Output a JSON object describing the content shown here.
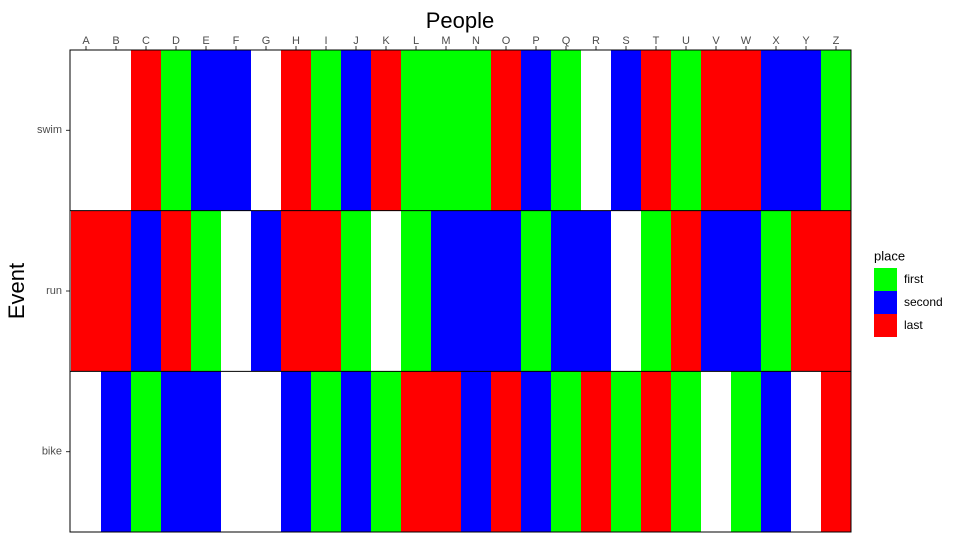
{
  "chart_data": {
    "type": "heatmap",
    "title": "People",
    "y_label": "Event",
    "categories": [
      "A",
      "B",
      "C",
      "D",
      "E",
      "F",
      "G",
      "H",
      "I",
      "J",
      "K",
      "L",
      "M",
      "N",
      "O",
      "P",
      "Q",
      "R",
      "S",
      "T",
      "U",
      "V",
      "W",
      "X",
      "Y",
      "Z"
    ],
    "rows": [
      "swim",
      "run",
      "bike"
    ],
    "values": [
      [
        null,
        null,
        "last",
        "first",
        "second",
        "second",
        null,
        "last",
        "first",
        "second",
        "last",
        "first",
        "first",
        "first",
        "last",
        "second",
        "first",
        null,
        "second",
        "last",
        "first",
        "last",
        "last",
        "second",
        "second",
        "first"
      ],
      [
        "last",
        "last",
        "second",
        "last",
        "first",
        null,
        "second",
        "last",
        "last",
        "first",
        null,
        "first",
        "second",
        "second",
        "second",
        "first",
        "second",
        "second",
        null,
        "first",
        "last",
        "second",
        "second",
        "first",
        "last",
        "last"
      ],
      [
        null,
        "second",
        "first",
        "second",
        "second",
        null,
        null,
        "second",
        "first",
        "second",
        "first",
        "last",
        "last",
        "second",
        "last",
        "second",
        "first",
        "last",
        "first",
        "last",
        "first",
        null,
        "first",
        "second",
        null,
        "last"
      ]
    ],
    "legend_title": "place",
    "levels": [
      {
        "name": "first",
        "color": "#00ff00"
      },
      {
        "name": "second",
        "color": "#0000ff"
      },
      {
        "name": "last",
        "color": "#ff0000"
      }
    ]
  }
}
